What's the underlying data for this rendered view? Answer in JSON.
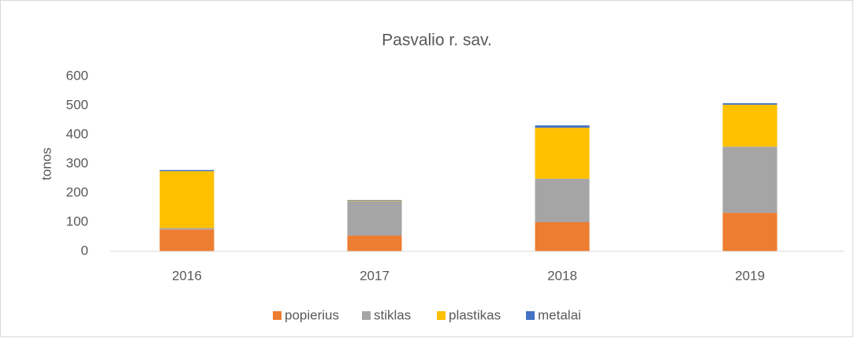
{
  "chart_data": {
    "type": "stacked_bar",
    "title": "Pasvalio r. sav.",
    "y_label": "tonos",
    "categories": [
      "2016",
      "2017",
      "2018",
      "2019"
    ],
    "series": [
      {
        "name": "popierius",
        "color": "#ed7d31",
        "values": [
          75,
          54,
          100,
          132
        ]
      },
      {
        "name": "stiklas",
        "color": "#a5a5a5",
        "values": [
          5,
          118,
          149,
          227
        ]
      },
      {
        "name": "plastikas",
        "color": "#ffc000",
        "values": [
          195,
          2,
          175,
          144
        ]
      },
      {
        "name": "metalai",
        "color": "#4472c4",
        "values": [
          4,
          2,
          8,
          5
        ]
      }
    ],
    "ylim": [
      0,
      600
    ],
    "yticks": [
      0,
      100,
      200,
      300,
      400,
      500,
      600
    ],
    "grid": false,
    "legend": "bottom"
  }
}
